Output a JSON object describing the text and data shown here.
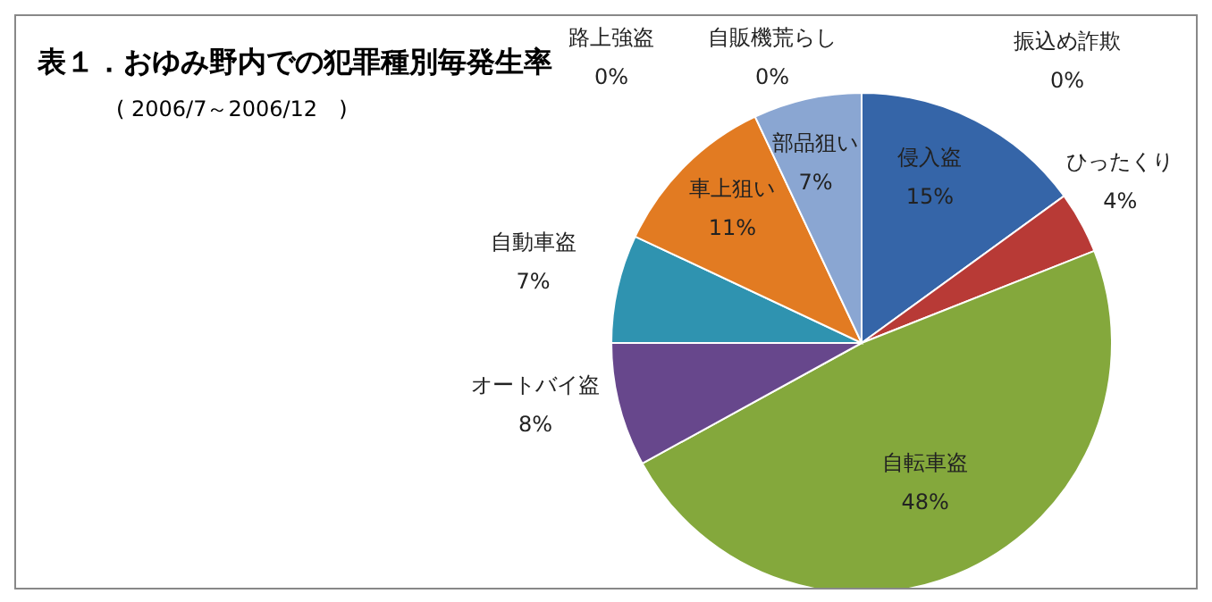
{
  "chart_data": {
    "type": "pie",
    "title": "表１．おゆみ野内での犯罪種別毎発生率",
    "subtitle": "( 2006/7～2006/12　)",
    "categories": [
      "振込め詐欺",
      "侵入盗",
      "ひったくり",
      "自転車盗",
      "オートバイ盗",
      "自動車盗",
      "車上狙い",
      "部品狙い",
      "自販機荒らし",
      "路上強盗"
    ],
    "values": [
      0,
      15,
      4,
      48,
      8,
      7,
      11,
      7,
      0,
      0
    ],
    "value_labels": [
      "0%",
      "15%",
      "4%",
      "48%",
      "8%",
      "7%",
      "11%",
      "7%",
      "0%",
      "0%"
    ],
    "colors": [
      "#c4d79b",
      "#3565a8",
      "#b83a36",
      "#84a83c",
      "#67478c",
      "#2f93b0",
      "#e27b22",
      "#8aa6d2",
      "#c8d890",
      "#d8e4bc"
    ]
  }
}
